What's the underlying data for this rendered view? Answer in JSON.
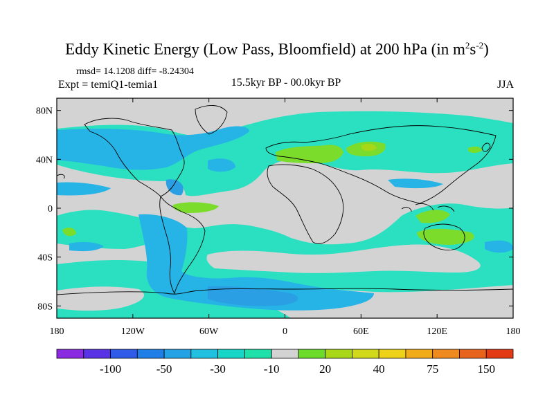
{
  "title": {
    "main": "Eddy Kinetic Energy (Low Pass, Bloomfield) at 200 hPa (in m",
    "sup1": "2",
    "mid": "s",
    "sup2": "-2",
    "end": ")"
  },
  "stats_line": "rmsd= 14.1208 diff= -8.24304",
  "experiment": "Expt = temiQ1-temia1",
  "period": "15.5kyr BP - 00.0kyr BP",
  "season": "JJA",
  "axes": {
    "lat_ticks": [
      "80N",
      "40N",
      "0",
      "40S",
      "80S"
    ],
    "lat_values": [
      80,
      40,
      0,
      -40,
      -80
    ],
    "lon_ticks": [
      "180",
      "120W",
      "60W",
      "0",
      "60E",
      "120E",
      "180"
    ],
    "lon_values": [
      -180,
      -120,
      -60,
      0,
      60,
      120,
      180
    ]
  },
  "colorbar": {
    "colors": [
      "#8a2be2",
      "#5a32e6",
      "#2f5be8",
      "#1f7fe6",
      "#23a3e6",
      "#22c0e0",
      "#18d6c7",
      "#1fe0a8",
      "#d3d3d3",
      "#6cdc2a",
      "#a8d818",
      "#d2d81a",
      "#eed21a",
      "#f2ac1a",
      "#ef8a1e",
      "#e8641c",
      "#e23a14"
    ],
    "labels": [
      "-100",
      "-50",
      "-30",
      "-10",
      "20",
      "40",
      "75",
      "150"
    ],
    "label_box_index": [
      2,
      4,
      6,
      8,
      10,
      12,
      14,
      16
    ]
  },
  "palette": {
    "gray": "#d3d3d3",
    "cyan": "#2ae0c0",
    "blue": "#26b4e6",
    "deep_blue": "#2a9fe4",
    "green": "#7cdc2c",
    "lime": "#a6d818"
  }
}
